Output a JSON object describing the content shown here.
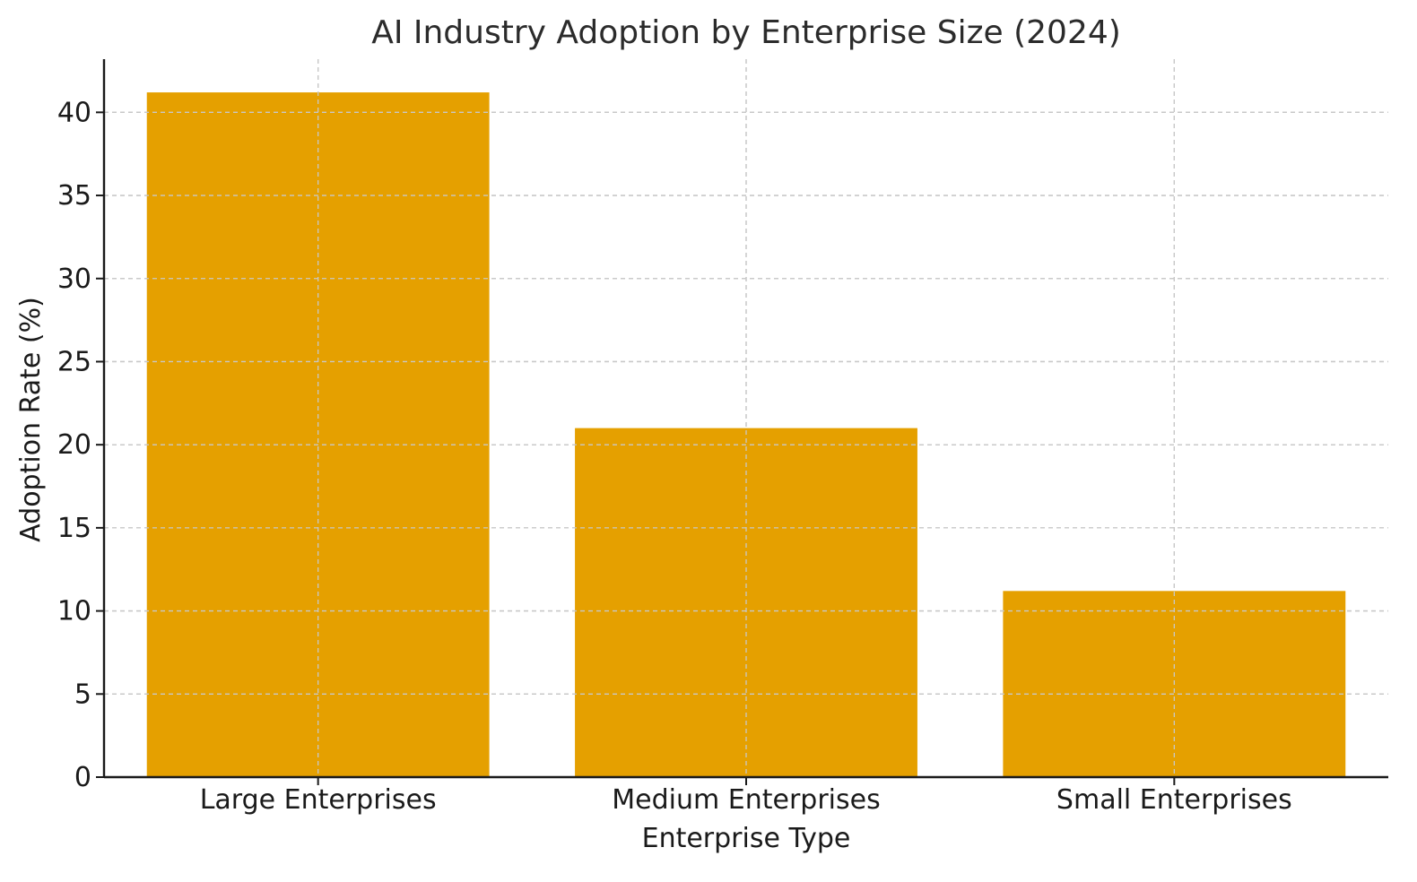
{
  "chart_data": {
    "type": "bar",
    "title": "AI Industry Adoption by Enterprise Size (2024)",
    "xlabel": "Enterprise Type",
    "ylabel": "Adoption Rate (%)",
    "categories": [
      "Large Enterprises",
      "Medium Enterprises",
      "Small Enterprises"
    ],
    "values": [
      41.2,
      21.0,
      11.2
    ],
    "ylim": [
      0,
      43.2
    ],
    "yticks": [
      0,
      5,
      10,
      15,
      20,
      25,
      30,
      35,
      40
    ],
    "grid": true,
    "legend": "none",
    "colors": {
      "bar": "#E5A000",
      "grid": "#c8c8c8",
      "axis": "#1a1a1a",
      "text": "#2b2b2b"
    }
  }
}
